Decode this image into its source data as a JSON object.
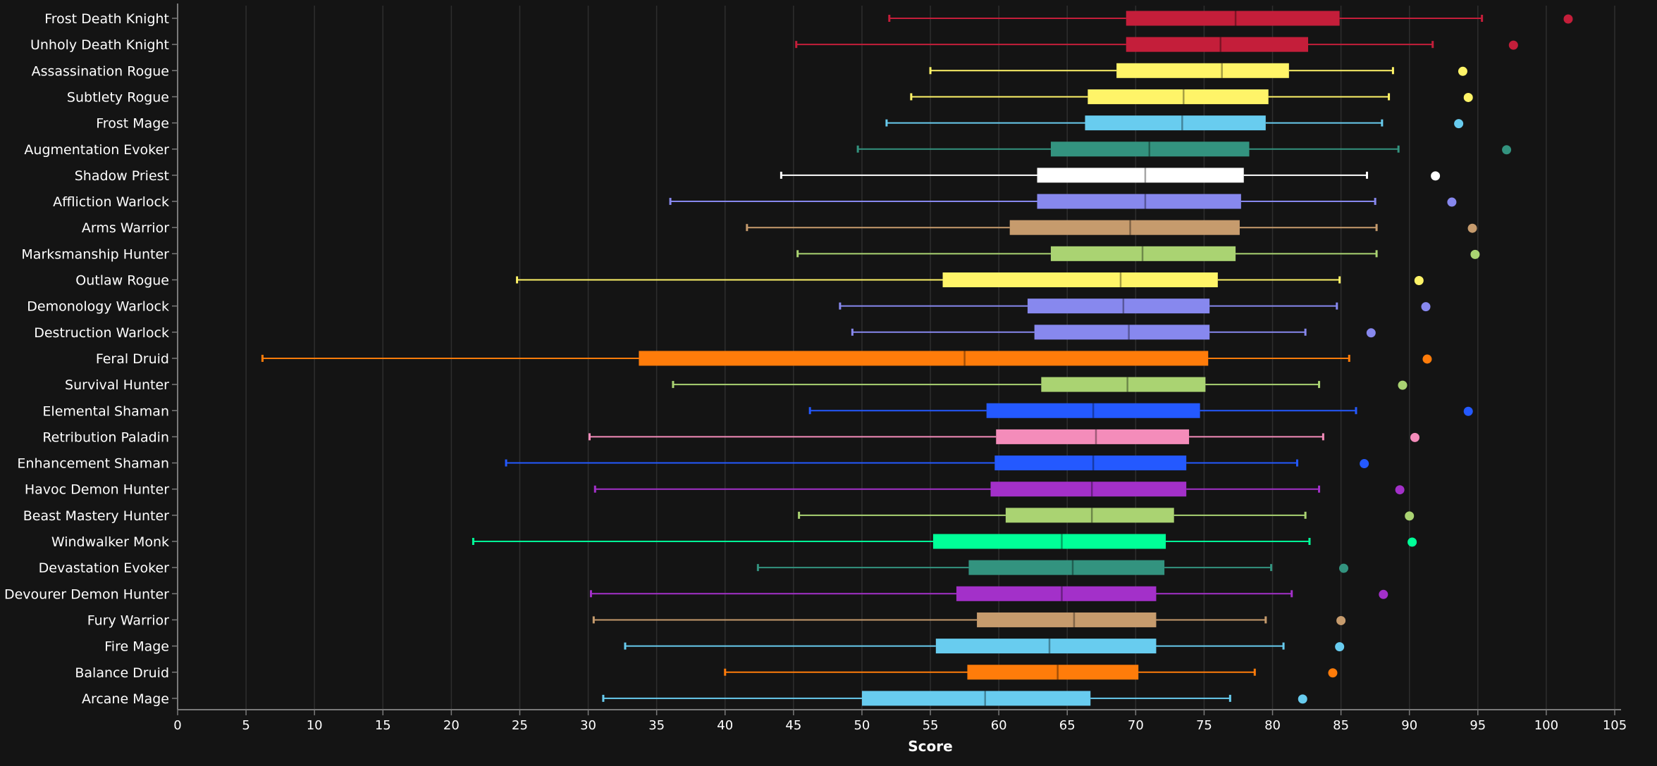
{
  "chart_data": {
    "type": "boxplot",
    "orientation": "horizontal",
    "xlabel": "Score",
    "xlim": [
      0,
      105
    ],
    "xticks": [
      0,
      5,
      10,
      15,
      20,
      25,
      30,
      35,
      40,
      45,
      50,
      55,
      60,
      65,
      70,
      75,
      80,
      85,
      90,
      95,
      100,
      105
    ],
    "grid": true,
    "series": [
      {
        "name": "Frost Death Knight",
        "color": "#C41E3A",
        "min": 52.0,
        "q1": 69.3,
        "median": 77.3,
        "q3": 84.9,
        "max": 95.3,
        "outlier": 101.6
      },
      {
        "name": "Unholy Death Knight",
        "color": "#C41E3A",
        "min": 45.2,
        "q1": 69.3,
        "median": 76.2,
        "q3": 82.6,
        "max": 91.7,
        "outlier": 97.6
      },
      {
        "name": "Assassination Rogue",
        "color": "#FFF468",
        "min": 55.0,
        "q1": 68.6,
        "median": 76.3,
        "q3": 81.2,
        "max": 88.8,
        "outlier": 93.9
      },
      {
        "name": "Subtlety Rogue",
        "color": "#FFF468",
        "min": 53.6,
        "q1": 66.5,
        "median": 73.5,
        "q3": 79.7,
        "max": 88.5,
        "outlier": 94.3
      },
      {
        "name": "Frost Mage",
        "color": "#68CCEF",
        "min": 51.8,
        "q1": 66.3,
        "median": 73.4,
        "q3": 79.5,
        "max": 88.0,
        "outlier": 93.6
      },
      {
        "name": "Augmentation Evoker",
        "color": "#33937F",
        "min": 49.7,
        "q1": 63.8,
        "median": 71.0,
        "q3": 78.3,
        "max": 89.2,
        "outlier": 97.1
      },
      {
        "name": "Shadow Priest",
        "color": "#FFFFFF",
        "min": 44.1,
        "q1": 62.8,
        "median": 70.7,
        "q3": 77.9,
        "max": 86.9,
        "outlier": 91.9
      },
      {
        "name": "Affliction Warlock",
        "color": "#8788EE",
        "min": 36.0,
        "q1": 62.8,
        "median": 70.7,
        "q3": 77.7,
        "max": 87.5,
        "outlier": 93.1
      },
      {
        "name": "Arms Warrior",
        "color": "#C69B6D",
        "min": 41.6,
        "q1": 60.8,
        "median": 69.6,
        "q3": 77.6,
        "max": 87.6,
        "outlier": 94.6
      },
      {
        "name": "Marksmanship Hunter",
        "color": "#AAD372",
        "min": 45.3,
        "q1": 63.8,
        "median": 70.5,
        "q3": 77.3,
        "max": 87.6,
        "outlier": 94.8
      },
      {
        "name": "Outlaw Rogue",
        "color": "#FFF468",
        "min": 24.8,
        "q1": 55.9,
        "median": 68.9,
        "q3": 76.0,
        "max": 84.9,
        "outlier": 90.7
      },
      {
        "name": "Demonology Warlock",
        "color": "#8788EE",
        "min": 48.4,
        "q1": 62.1,
        "median": 69.1,
        "q3": 75.4,
        "max": 84.7,
        "outlier": 91.2
      },
      {
        "name": "Destruction Warlock",
        "color": "#8788EE",
        "min": 49.3,
        "q1": 62.6,
        "median": 69.5,
        "q3": 75.4,
        "max": 82.4,
        "outlier": 87.2
      },
      {
        "name": "Feral Druid",
        "color": "#FF7C0A",
        "min": 6.2,
        "q1": 33.7,
        "median": 57.5,
        "q3": 75.3,
        "max": 85.6,
        "outlier": 91.3
      },
      {
        "name": "Survival Hunter",
        "color": "#AAD372",
        "min": 36.2,
        "q1": 63.1,
        "median": 69.4,
        "q3": 75.1,
        "max": 83.4,
        "outlier": 89.5
      },
      {
        "name": "Elemental Shaman",
        "color": "#0070DD",
        "min": 46.2,
        "q1": 59.1,
        "median": 66.9,
        "q3": 74.7,
        "max": 86.1,
        "outlier": 94.3
      },
      {
        "name": "Retribution Paladin",
        "color": "#F48CBA",
        "min": 30.1,
        "q1": 59.8,
        "median": 67.1,
        "q3": 73.9,
        "max": 83.7,
        "outlier": 90.4
      },
      {
        "name": "Enhancement Shaman",
        "color": "#0070DD",
        "min": 24.0,
        "q1": 59.7,
        "median": 66.9,
        "q3": 73.7,
        "max": 81.8,
        "outlier": 86.7
      },
      {
        "name": "Havoc Demon Hunter",
        "color": "#A330C9",
        "min": 30.5,
        "q1": 59.4,
        "median": 66.8,
        "q3": 73.7,
        "max": 83.4,
        "outlier": 89.3
      },
      {
        "name": "Beast Mastery Hunter",
        "color": "#AAD372",
        "min": 45.4,
        "q1": 60.5,
        "median": 66.8,
        "q3": 72.8,
        "max": 82.4,
        "outlier": 90.0
      },
      {
        "name": "Windwalker Monk",
        "color": "#00FF98",
        "min": 21.6,
        "q1": 55.2,
        "median": 64.6,
        "q3": 72.2,
        "max": 82.7,
        "outlier": 90.2
      },
      {
        "name": "Devastation Evoker",
        "color": "#33937F",
        "min": 42.4,
        "q1": 57.8,
        "median": 65.4,
        "q3": 72.1,
        "max": 79.9,
        "outlier": 85.2
      },
      {
        "name": "Devourer Demon Hunter",
        "color": "#A330C9",
        "min": 30.2,
        "q1": 56.9,
        "median": 64.6,
        "q3": 71.5,
        "max": 81.4,
        "outlier": 88.1
      },
      {
        "name": "Fury Warrior",
        "color": "#C69B6D",
        "min": 30.4,
        "q1": 58.4,
        "median": 65.5,
        "q3": 71.5,
        "max": 79.5,
        "outlier": 85.0
      },
      {
        "name": "Fire Mage",
        "color": "#68CCEF",
        "min": 32.7,
        "q1": 55.4,
        "median": 63.7,
        "q3": 71.5,
        "max": 80.8,
        "outlier": 84.9
      },
      {
        "name": "Balance Druid",
        "color": "#FF7C0A",
        "min": 40.0,
        "q1": 57.7,
        "median": 64.3,
        "q3": 70.2,
        "max": 78.7,
        "outlier": 84.4
      },
      {
        "name": "Arcane Mage",
        "color": "#68CCEF",
        "min": 31.1,
        "q1": 50.0,
        "median": 59.0,
        "q3": 66.7,
        "max": 76.9,
        "outlier": 82.2
      }
    ]
  },
  "colors": {
    "background": "#141414",
    "grid": "#2e2e2e",
    "axis": "#7a7a7a",
    "text": "#ffffff",
    "adjusted_name_colors": {
      "Elemental Shaman": "#2459ff",
      "Enhancement Shaman": "#2459ff"
    }
  }
}
